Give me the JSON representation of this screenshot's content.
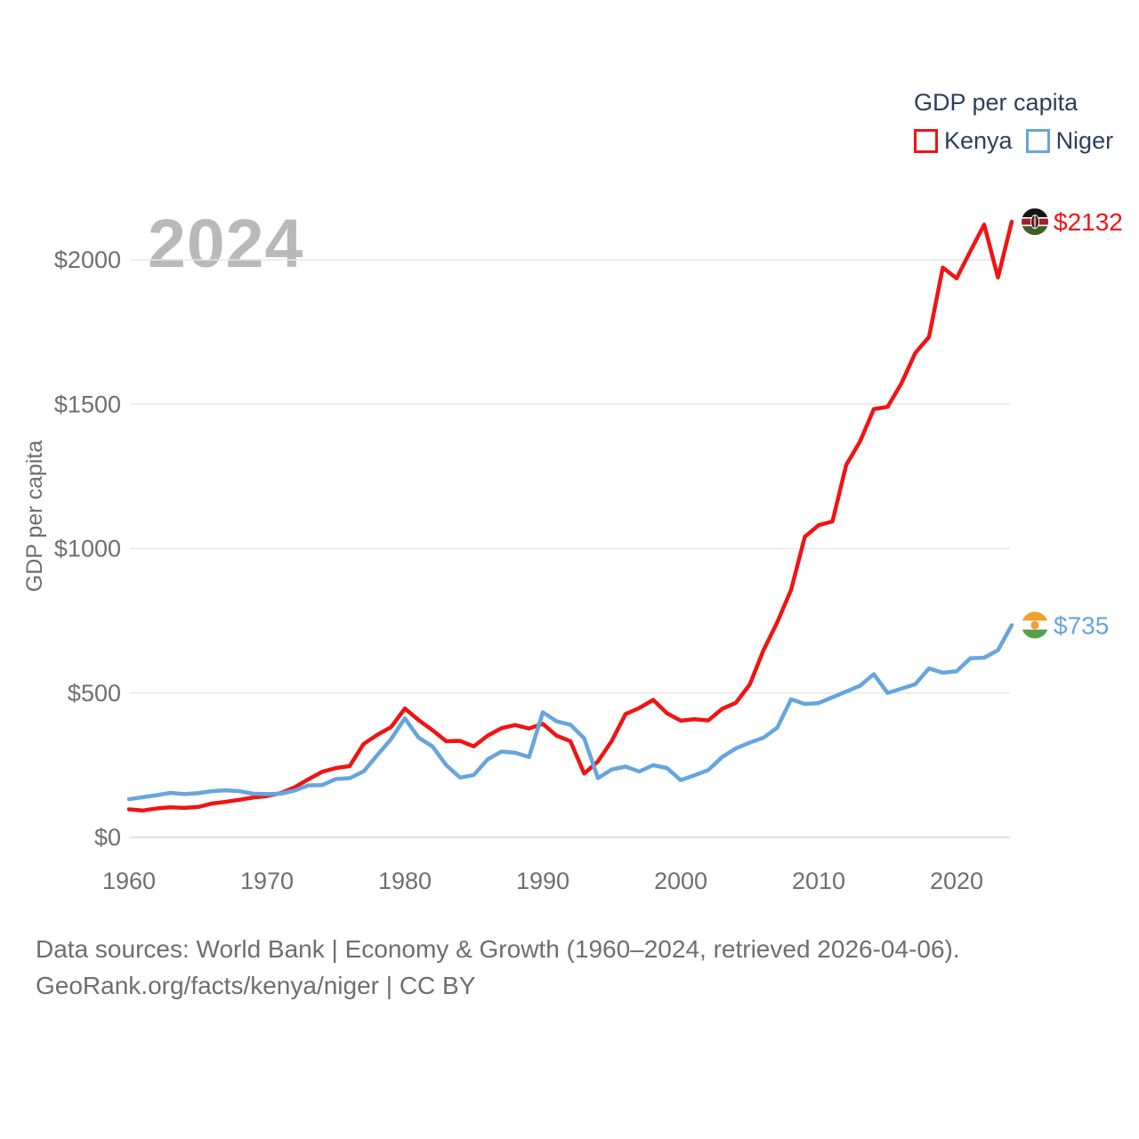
{
  "legend": {
    "title": "GDP per capita",
    "items": [
      {
        "label": "Kenya",
        "color": "#f01414"
      },
      {
        "label": "Niger",
        "color": "#66a5de"
      }
    ]
  },
  "watermark": "2024",
  "y_axis": {
    "title": "GDP per capita"
  },
  "end_labels": {
    "kenya": "$2132",
    "niger": "$735"
  },
  "footer": {
    "line1": "Data sources: World Bank | Economy & Growth (1960–2024, retrieved 2026-04-06).",
    "line2": "GeoRank.org/facts/kenya/niger | CC BY"
  },
  "chart_data": {
    "type": "line",
    "title": "GDP per capita",
    "xlabel": "",
    "ylabel": "GDP per capita",
    "x_range": [
      1960,
      2024
    ],
    "ylim": [
      0,
      2200
    ],
    "grid": "horizontal",
    "legend_position": "top-right",
    "y_axis_ticks": [
      {
        "value": 0,
        "label": "$0"
      },
      {
        "value": 500,
        "label": "$500"
      },
      {
        "value": 1000,
        "label": "$1000"
      },
      {
        "value": 1500,
        "label": "$1500"
      },
      {
        "value": 2000,
        "label": "$2000"
      }
    ],
    "x_axis_ticks": [
      {
        "value": 1960,
        "label": "1960"
      },
      {
        "value": 1970,
        "label": "1970"
      },
      {
        "value": 1980,
        "label": "1980"
      },
      {
        "value": 1990,
        "label": "1990"
      },
      {
        "value": 2000,
        "label": "2000"
      },
      {
        "value": 2010,
        "label": "2010"
      },
      {
        "value": 2020,
        "label": "2020"
      }
    ],
    "years": [
      1960,
      1961,
      1962,
      1963,
      1964,
      1965,
      1966,
      1967,
      1968,
      1969,
      1970,
      1971,
      1972,
      1973,
      1974,
      1975,
      1976,
      1977,
      1978,
      1979,
      1980,
      1981,
      1982,
      1983,
      1984,
      1985,
      1986,
      1987,
      1988,
      1989,
      1990,
      1991,
      1992,
      1993,
      1994,
      1995,
      1996,
      1997,
      1998,
      1999,
      2000,
      2001,
      2002,
      2003,
      2004,
      2005,
      2006,
      2007,
      2008,
      2009,
      2010,
      2011,
      2012,
      2013,
      2014,
      2015,
      2016,
      2017,
      2018,
      2019,
      2020,
      2021,
      2022,
      2023,
      2024
    ],
    "series": [
      {
        "name": "Kenya",
        "color": "#f01414",
        "final_value": 2132,
        "end_label": "$2132",
        "values": [
          97,
          93,
          100,
          104,
          102,
          105,
          117,
          123,
          130,
          138,
          143,
          153,
          173,
          201,
          227,
          240,
          247,
          323,
          355,
          382,
          446,
          406,
          371,
          333,
          334,
          315,
          352,
          378,
          389,
          377,
          393,
          352,
          333,
          221,
          263,
          334,
          427,
          448,
          476,
          430,
          404,
          409,
          405,
          445,
          466,
          529,
          648,
          745,
          857,
          1041,
          1081,
          1094,
          1290,
          1371,
          1483,
          1491,
          1572,
          1677,
          1733,
          1973,
          1936,
          2030,
          2122,
          1939,
          2132
        ]
      },
      {
        "name": "Niger",
        "color": "#66a5de",
        "final_value": 735,
        "end_label": "$735",
        "values": [
          132,
          139,
          146,
          154,
          150,
          153,
          160,
          163,
          160,
          151,
          150,
          151,
          162,
          180,
          181,
          202,
          205,
          228,
          285,
          340,
          412,
          345,
          315,
          250,
          207,
          216,
          270,
          297,
          293,
          278,
          433,
          402,
          390,
          343,
          205,
          235,
          245,
          228,
          250,
          240,
          198,
          215,
          233,
          278,
          308,
          328,
          345,
          380,
          478,
          462,
          465,
          485,
          505,
          525,
          565,
          500,
          515,
          530,
          585,
          570,
          575,
          620,
          622,
          648,
          735
        ]
      }
    ]
  }
}
